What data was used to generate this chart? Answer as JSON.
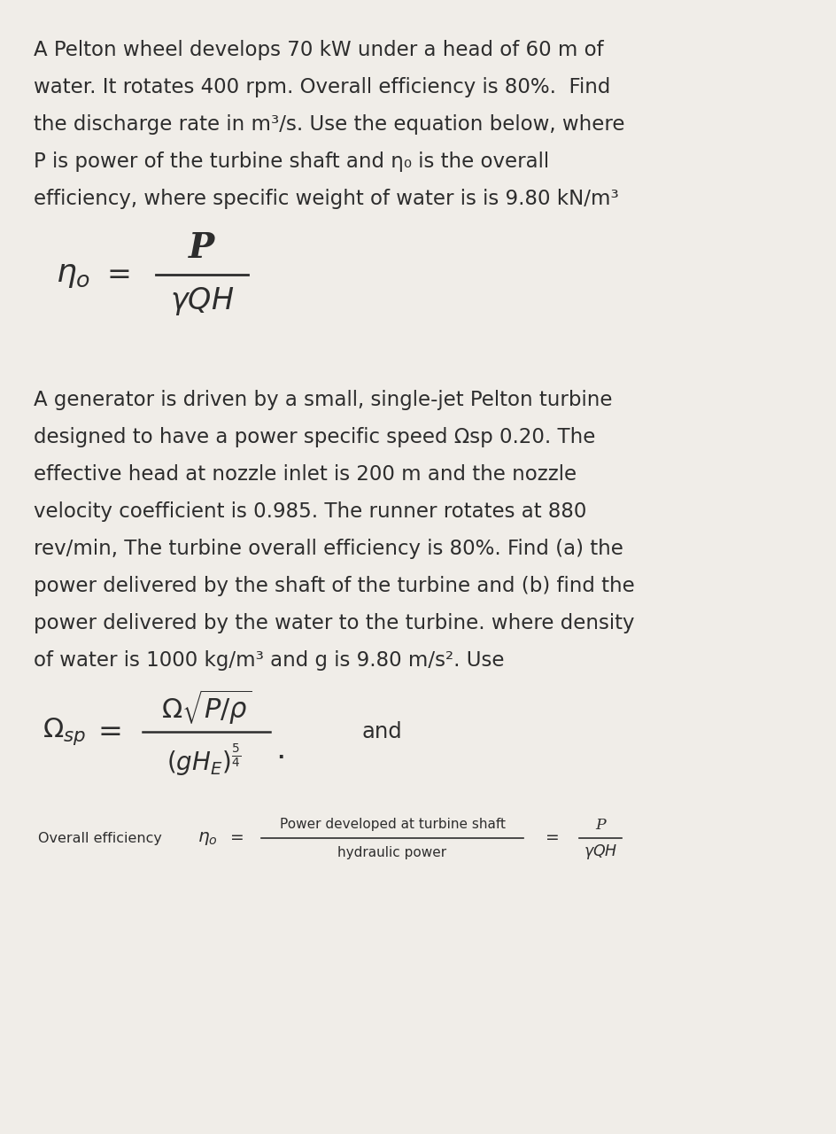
{
  "bg_color": "#f0ede8",
  "text_color": "#2d2d2d",
  "main_fontsize": 16.5,
  "formula_fontsize": 22,
  "small_fontsize": 11.5,
  "lines1": [
    "A Pelton wheel develops 70 kW under a head of 60 m of",
    "water. It rotates 400 rpm. Overall efficiency is 80%.  Find",
    "the discharge rate in m³/s. Use the equation below, where",
    "P is power of the turbine shaft and η₀ is the overall",
    "efficiency, where specific weight of water is is 9.80 kN/m³"
  ],
  "lines2": [
    "A generator is driven by a small, single-jet Pelton turbine",
    "designed to have a power specific speed Ωsp 0.20. The",
    "effective head at nozzle inlet is 200 m and the nozzle",
    "velocity coefficient is 0.985. The runner rotates at 880",
    "rev/min, The turbine overall efficiency is 80%. Find (a) the",
    "power delivered by the shaft of the turbine and (b) find the",
    "power delivered by the water to the turbine. where density",
    "of water is 1000 kg/m³ and g is 9.80 m/s². Use"
  ],
  "footer_label": "Overall efficiency",
  "footer_num": "Power developed at turbine shaft",
  "footer_den": "hydraulic power"
}
